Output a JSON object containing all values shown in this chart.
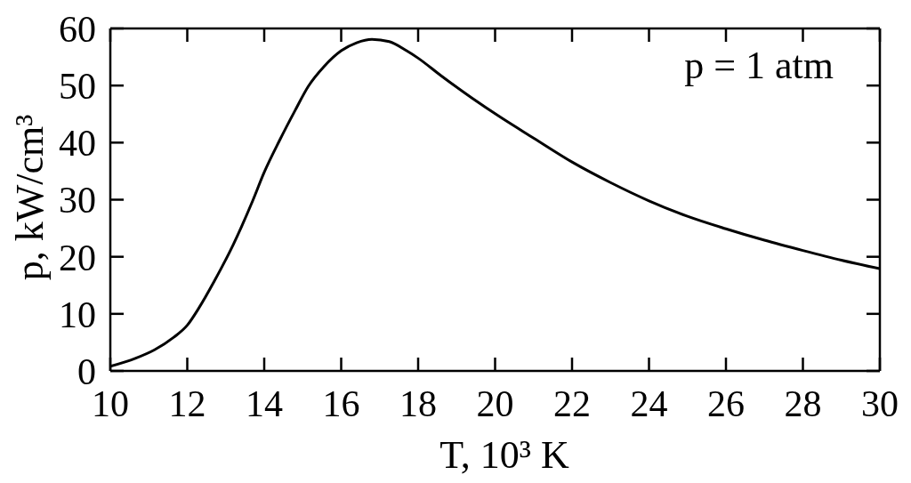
{
  "chart_data": {
    "type": "line",
    "xlabel": "T, 10³ K",
    "ylabel": "p, kW/cm³",
    "annotations": [
      "p = 1 atm"
    ],
    "x": [
      10,
      10.65,
      11.15,
      11.65,
      12,
      12.3,
      12.7,
      13.2,
      13.7,
      14,
      14.4,
      14.8,
      15.15,
      15.55,
      16,
      16.4,
      16.8,
      17.25,
      17.7,
      18,
      18.6,
      19.4,
      20.15,
      21,
      22,
      23,
      24,
      25,
      26,
      27,
      28,
      29,
      30
    ],
    "series": [
      {
        "color": "#000000",
        "values": [
          0.8,
          2.2,
          3.7,
          5.9,
          8.0,
          11.0,
          15.7,
          22.2,
          29.8,
          34.8,
          40.4,
          45.6,
          49.9,
          53.3,
          56.1,
          57.5,
          58.1,
          57.7,
          56.1,
          54.8,
          51.7,
          47.8,
          44.4,
          40.8,
          36.6,
          33.0,
          29.8,
          27.1,
          24.9,
          22.9,
          21.1,
          19.4,
          17.9
        ]
      }
    ],
    "xlim": [
      10,
      30
    ],
    "ylim": [
      0,
      60
    ],
    "xticks": [
      10,
      12,
      14,
      16,
      18,
      20,
      22,
      24,
      26,
      28,
      30
    ],
    "yticks": [
      0,
      10,
      20,
      30,
      40,
      50,
      60
    ],
    "line_style": "solid"
  }
}
